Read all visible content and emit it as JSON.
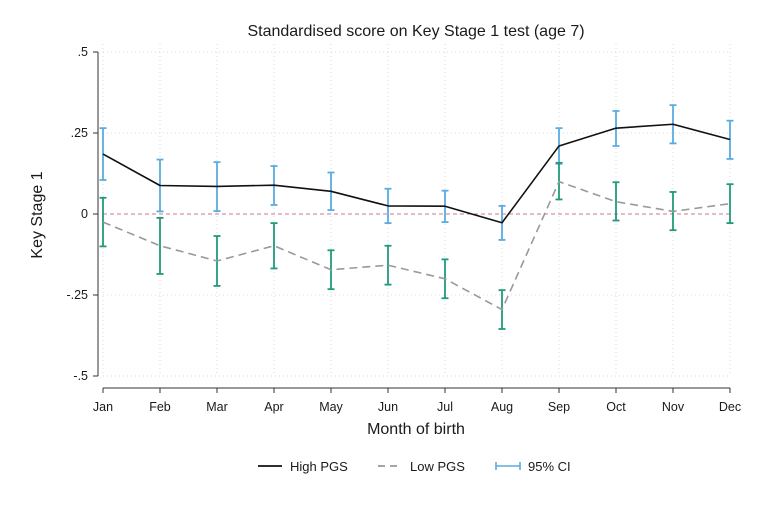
{
  "colors": {
    "high": "#111111",
    "low": "#999999",
    "ci_high": "#5aace0",
    "ci_low": "#1f9a7a",
    "zero_line": "#c47a8e",
    "grid": "#d8d8d8"
  },
  "chart_data": {
    "type": "line",
    "title": "Standardised score on Key Stage 1 test (age 7)",
    "xlabel": "Month of birth",
    "ylabel": "Key Stage 1",
    "categories": [
      "Jan",
      "Feb",
      "Mar",
      "Apr",
      "May",
      "Jun",
      "Jul",
      "Aug",
      "Sep",
      "Oct",
      "Nov",
      "Dec"
    ],
    "ylim": [
      -0.5,
      0.5
    ],
    "yticks": [
      -0.5,
      -0.25,
      0,
      0.25,
      0.5
    ],
    "ytick_labels": [
      "-.5",
      "-.25",
      "0",
      ".25",
      ".5"
    ],
    "grid": true,
    "reference_line": 0,
    "legend_position": "bottom",
    "legend": {
      "high": "High PGS",
      "low": "Low PGS",
      "ci": "95% CI"
    },
    "series": [
      {
        "name": "High PGS",
        "style": "solid",
        "values": [
          0.185,
          0.088,
          0.085,
          0.089,
          0.07,
          0.025,
          0.024,
          -0.027,
          0.21,
          0.265,
          0.277,
          0.23
        ],
        "ci_lower": [
          0.105,
          0.008,
          0.009,
          0.028,
          0.012,
          -0.028,
          -0.025,
          -0.08,
          0.155,
          0.21,
          0.218,
          0.17
        ],
        "ci_upper": [
          0.265,
          0.168,
          0.16,
          0.148,
          0.128,
          0.078,
          0.072,
          0.025,
          0.265,
          0.318,
          0.336,
          0.288
        ]
      },
      {
        "name": "Low PGS",
        "style": "dashed",
        "values": [
          -0.025,
          -0.098,
          -0.145,
          -0.098,
          -0.172,
          -0.158,
          -0.2,
          -0.295,
          0.1,
          0.038,
          0.008,
          0.032
        ],
        "ci_lower": [
          -0.1,
          -0.185,
          -0.222,
          -0.168,
          -0.232,
          -0.218,
          -0.26,
          -0.355,
          0.045,
          -0.02,
          -0.05,
          -0.028
        ],
        "ci_upper": [
          0.05,
          -0.012,
          -0.068,
          -0.028,
          -0.112,
          -0.098,
          -0.14,
          -0.235,
          0.158,
          0.098,
          0.068,
          0.092
        ]
      }
    ]
  }
}
